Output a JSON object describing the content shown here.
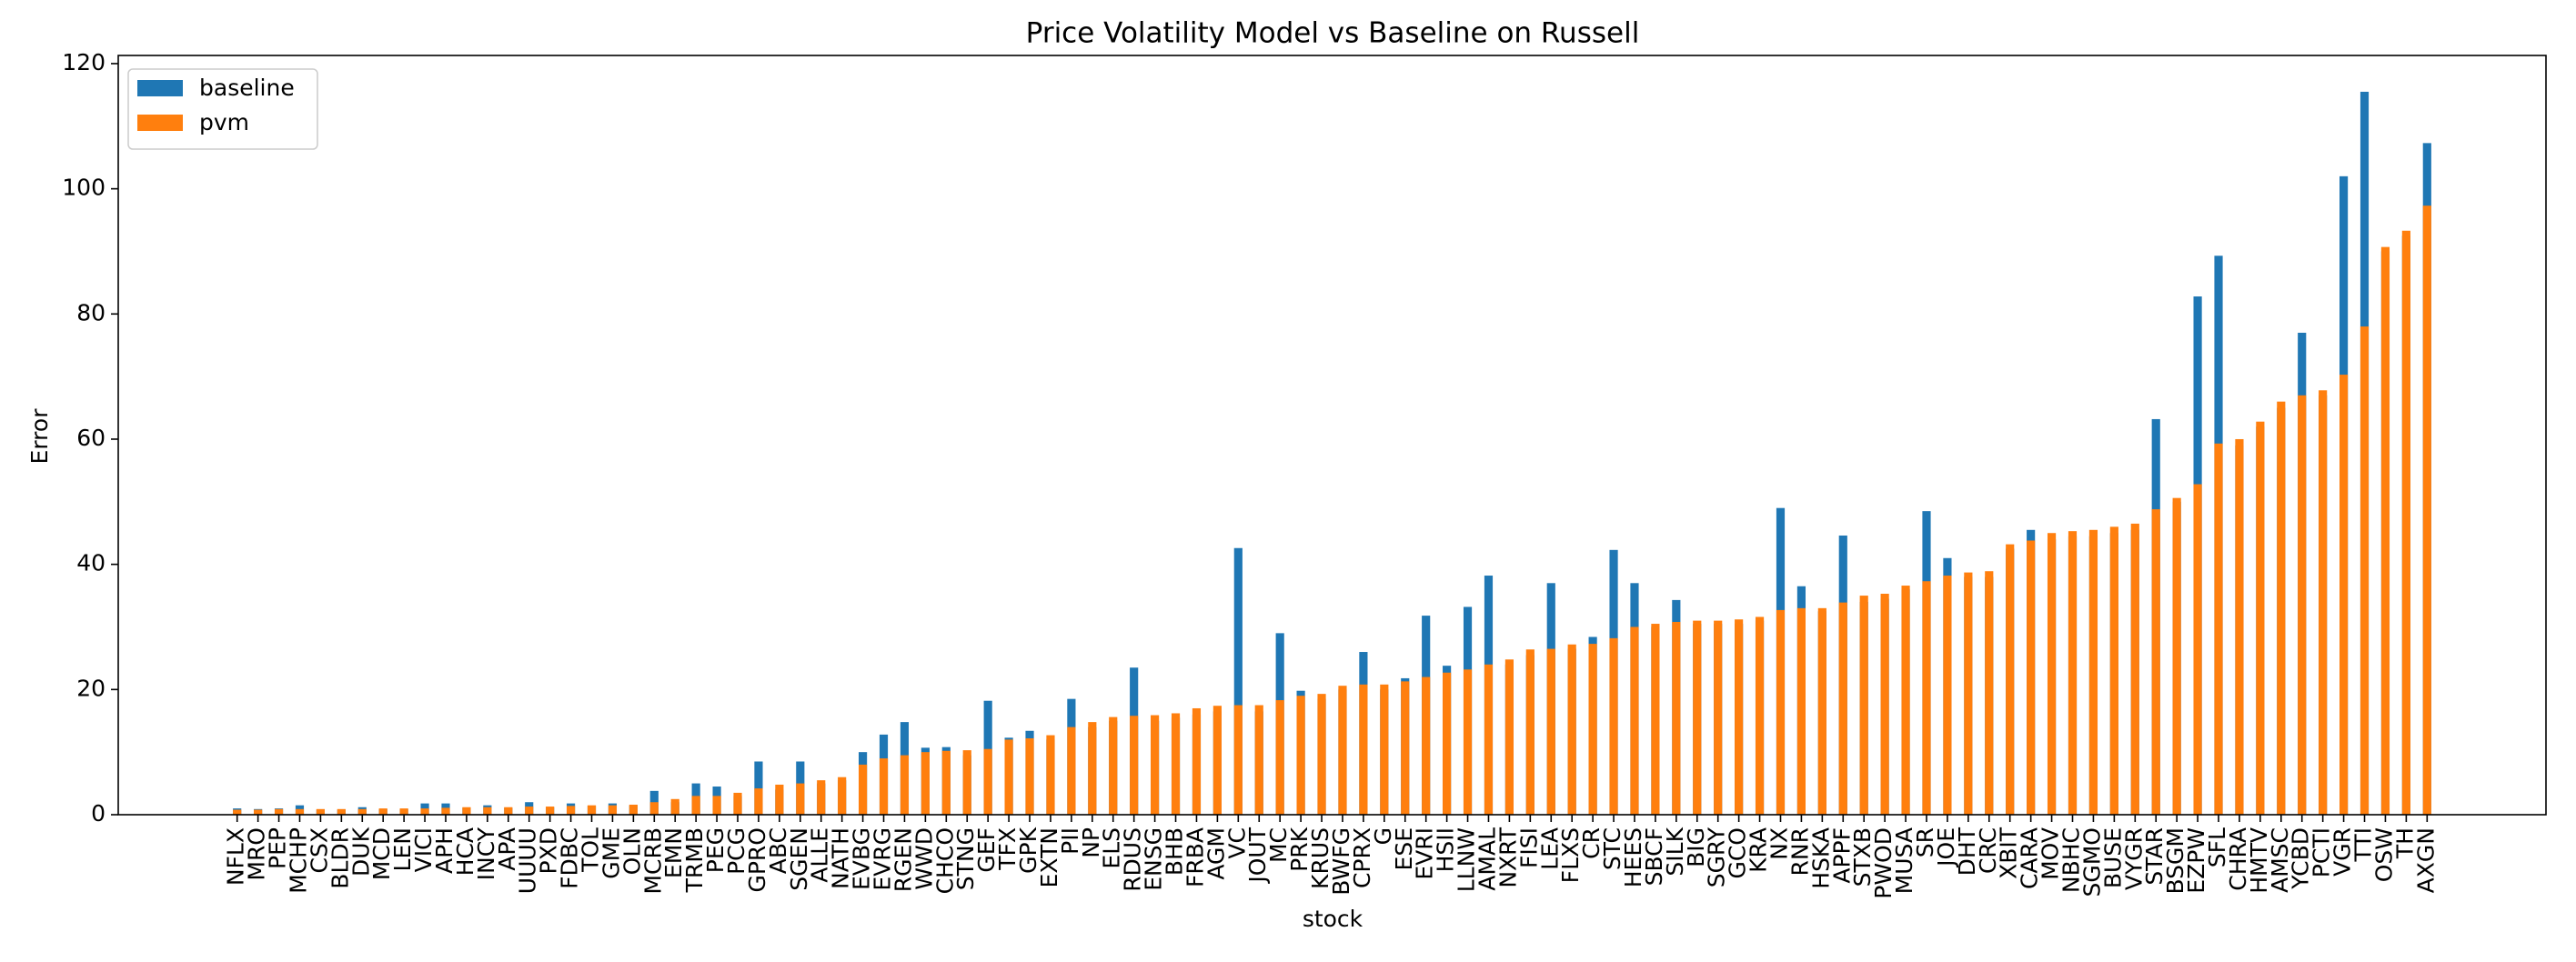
{
  "chart_data": {
    "type": "bar",
    "title": "Price Volatility Model vs Baseline on Russell",
    "x_label": "stock",
    "y_label": "Error",
    "categories": [
      "NFLX",
      "MRO",
      "PEP",
      "MCHP",
      "CSX",
      "BLDR",
      "DUK",
      "MCD",
      "LEN",
      "VICI",
      "APH",
      "HCA",
      "INCY",
      "APA",
      "UUUU",
      "PXD",
      "FDBC",
      "TOL",
      "GME",
      "OLN",
      "MCRB",
      "EMN",
      "TRMB",
      "PEG",
      "PCG",
      "GPRO",
      "ABC",
      "SGEN",
      "ALLE",
      "NATH",
      "EVBG",
      "EVRG",
      "RGEN",
      "WWD",
      "CHCO",
      "STNG",
      "GEF",
      "TFX",
      "GPK",
      "EXTN",
      "PII",
      "NP",
      "ELS",
      "RDUS",
      "ENSG",
      "BHB",
      "FRBA",
      "AGM",
      "VC",
      "JOUT",
      "MC",
      "PRK",
      "KRUS",
      "BWFG",
      "CPRX",
      "G",
      "ESE",
      "EVRI",
      "HSII",
      "LLNW",
      "AMAL",
      "NXRT",
      "FISI",
      "LEA",
      "FLXS",
      "CR",
      "STC",
      "HEES",
      "SBCF",
      "SILK",
      "BIG",
      "SGRY",
      "GCO",
      "KRA",
      "NX",
      "RNR",
      "HSKA",
      "APPF",
      "STXB",
      "PWOD",
      "MUSA",
      "SR",
      "JOE",
      "DHT",
      "CRC",
      "XBIT",
      "CARA",
      "MOV",
      "NBHC",
      "SGMO",
      "BUSE",
      "VYGR",
      "STAR",
      "BSGM",
      "EZPW",
      "SFL",
      "CHRA",
      "HMTV",
      "AMSC",
      "YCBD",
      "PCTI",
      "VGR",
      "TTI",
      "OSW",
      "TH",
      "AXGN"
    ],
    "series": [
      {
        "name": "baseline",
        "color": "#1f77b4",
        "values": [
          1.0,
          0.9,
          1.0,
          1.5,
          0.8,
          0.8,
          1.2,
          0.9,
          0.9,
          1.8,
          1.8,
          1.1,
          1.5,
          1.1,
          2.0,
          1.2,
          1.8,
          1.4,
          1.8,
          1.5,
          3.8,
          2.0,
          5.0,
          4.5,
          3.0,
          8.5,
          4.0,
          8.5,
          5.0,
          5.5,
          10.0,
          12.8,
          14.8,
          10.7,
          10.8,
          9.5,
          18.2,
          12.3,
          13.4,
          12.0,
          18.5,
          14.0,
          15.0,
          23.5,
          15.0,
          15.5,
          16.0,
          16.5,
          42.6,
          16.5,
          29.0,
          19.8,
          18.5,
          20.0,
          26.0,
          20.0,
          21.8,
          31.8,
          23.8,
          33.2,
          38.2,
          24.0,
          25.5,
          37.0,
          26.5,
          28.4,
          42.3,
          37.0,
          30.0,
          34.3,
          30.5,
          30.5,
          30.5,
          31.0,
          49.0,
          36.5,
          32.5,
          44.6,
          34.0,
          34.5,
          36.0,
          48.5,
          41.0,
          38.0,
          38.0,
          42.5,
          45.5,
          44.0,
          44.5,
          44.5,
          45.0,
          45.5,
          63.2,
          50.0,
          82.8,
          89.3,
          59.0,
          62.0,
          65.0,
          77.0,
          67.0,
          102.0,
          115.5,
          90.0,
          92.5,
          107.3
        ]
      },
      {
        "name": "pvm",
        "color": "#ff7f0e",
        "values": [
          0.8,
          0.8,
          0.9,
          0.9,
          0.9,
          0.9,
          0.9,
          1.0,
          1.0,
          1.0,
          1.1,
          1.2,
          1.2,
          1.2,
          1.3,
          1.3,
          1.4,
          1.5,
          1.5,
          1.6,
          2.0,
          2.5,
          3.0,
          3.0,
          3.5,
          4.2,
          4.8,
          5.0,
          5.5,
          6.0,
          8.0,
          9.0,
          9.5,
          10.0,
          10.2,
          10.3,
          10.5,
          12.0,
          12.2,
          12.7,
          14.0,
          14.8,
          15.6,
          15.8,
          15.9,
          16.2,
          17.0,
          17.4,
          17.5,
          17.5,
          18.3,
          19.0,
          19.3,
          20.6,
          20.8,
          20.8,
          21.3,
          22.0,
          22.7,
          23.2,
          24.0,
          24.8,
          26.4,
          26.5,
          27.2,
          27.3,
          28.2,
          30.0,
          30.5,
          30.8,
          31.0,
          31.0,
          31.2,
          31.6,
          32.7,
          33.0,
          33.0,
          33.9,
          35.0,
          35.3,
          36.6,
          37.3,
          38.2,
          38.7,
          38.9,
          43.2,
          43.8,
          45.0,
          45.3,
          45.5,
          46.0,
          46.5,
          48.8,
          50.6,
          52.8,
          59.3,
          60.0,
          62.8,
          66.0,
          67.0,
          67.8,
          70.3,
          78.0,
          90.7,
          93.3,
          97.3
        ]
      }
    ],
    "ylim": [
      0,
      121.3
    ],
    "yticks": [
      0,
      20,
      40,
      60,
      80,
      100,
      120
    ],
    "legend": "upper left"
  }
}
